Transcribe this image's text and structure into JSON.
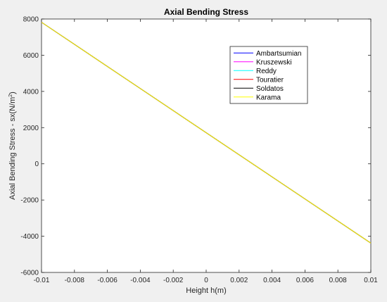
{
  "chart_data": {
    "type": "line",
    "title": "Axial Bending Stress",
    "xlabel": "Height h(m)",
    "ylabel": "Axial Bending Stress - sx(N/m",
    "ylabel_sup": "2",
    "ylabel_close": ")",
    "xlim": [
      -0.01,
      0.01
    ],
    "ylim": [
      -6000,
      8000
    ],
    "xticks": [
      -0.01,
      -0.008,
      -0.006,
      -0.004,
      -0.002,
      0,
      0.002,
      0.004,
      0.006,
      0.008,
      0.01
    ],
    "xtick_labels": [
      "-0.01",
      "-0.008",
      "-0.006",
      "-0.004",
      "-0.002",
      "0",
      "0.002",
      "0.004",
      "0.006",
      "0.008",
      "0.01"
    ],
    "yticks": [
      -6000,
      -4000,
      -2000,
      0,
      2000,
      4000,
      6000,
      8000
    ],
    "ytick_labels": [
      "-6000",
      "-4000",
      "-2000",
      "0",
      "2000",
      "4000",
      "6000",
      "8000"
    ],
    "grid": false,
    "legend_position": "top-right",
    "series": [
      {
        "name": "Ambartsumian",
        "color": "#0000ff",
        "x": [
          -0.01,
          0.01
        ],
        "y": [
          7820,
          -4380
        ]
      },
      {
        "name": "Kruszewski",
        "color": "#ff00ff",
        "x": [
          -0.01,
          0.01
        ],
        "y": [
          7820,
          -4380
        ]
      },
      {
        "name": "Reddy",
        "color": "#00ffff",
        "x": [
          -0.01,
          0.01
        ],
        "y": [
          7820,
          -4380
        ]
      },
      {
        "name": "Touratier",
        "color": "#ff0000",
        "x": [
          -0.01,
          0.01
        ],
        "y": [
          7820,
          -4380
        ]
      },
      {
        "name": "Soldatos",
        "color": "#000000",
        "x": [
          -0.01,
          0.01
        ],
        "y": [
          7820,
          -4380
        ]
      },
      {
        "name": "Karama",
        "color": "#ffff00",
        "x": [
          -0.01,
          0.01
        ],
        "y": [
          7820,
          -4380
        ]
      }
    ]
  }
}
